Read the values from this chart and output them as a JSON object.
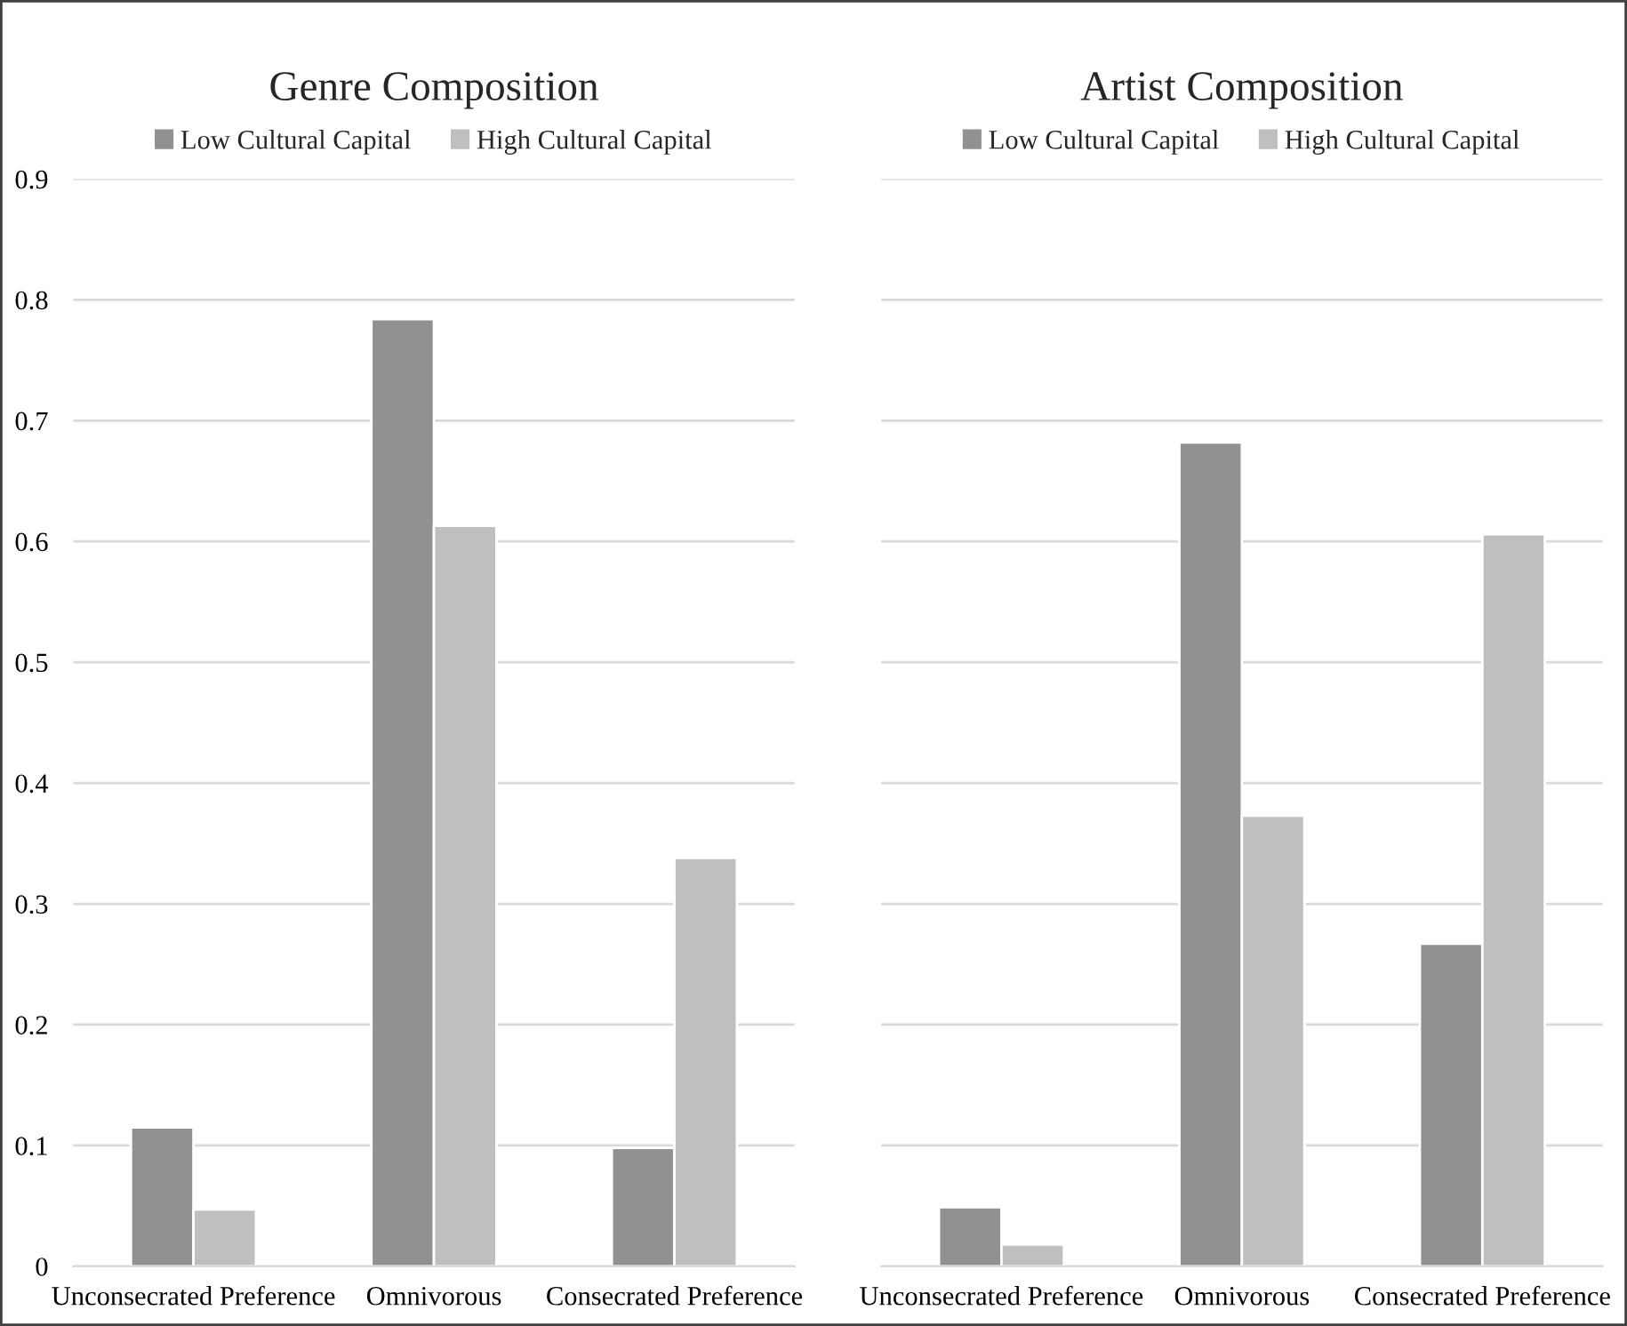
{
  "chart_data": [
    {
      "type": "bar",
      "title": "Genre Composition",
      "categories": [
        "Unconsecrated Preference",
        "Omnivorous",
        "Consecrated Preference"
      ],
      "series": [
        {
          "name": "Low Cultural Capital",
          "color": "#919191",
          "values": [
            0.115,
            0.784,
            0.098
          ]
        },
        {
          "name": "High Cultural Capital",
          "color": "#bfbfbf",
          "values": [
            0.047,
            0.613,
            0.338
          ]
        }
      ],
      "ylim": [
        0,
        0.9
      ],
      "yticks": [
        0,
        0.1,
        0.2,
        0.3,
        0.4,
        0.5,
        0.6,
        0.7,
        0.8,
        0.9
      ],
      "grid": "y",
      "legend": "top"
    },
    {
      "type": "bar",
      "title": "Artist Composition",
      "categories": [
        "Unconsecrated Preference",
        "Omnivorous",
        "Consecrated Preference"
      ],
      "series": [
        {
          "name": "Low Cultural Capital",
          "color": "#919191",
          "values": [
            0.049,
            0.682,
            0.267
          ]
        },
        {
          "name": "High Cultural Capital",
          "color": "#bfbfbf",
          "values": [
            0.018,
            0.373,
            0.606
          ]
        }
      ],
      "ylim": [
        0,
        0.9
      ],
      "yticks": [
        0,
        0.1,
        0.2,
        0.3,
        0.4,
        0.5,
        0.6,
        0.7,
        0.8,
        0.9
      ],
      "grid": "y",
      "legend": "top",
      "tick_labels": "x"
    }
  ]
}
